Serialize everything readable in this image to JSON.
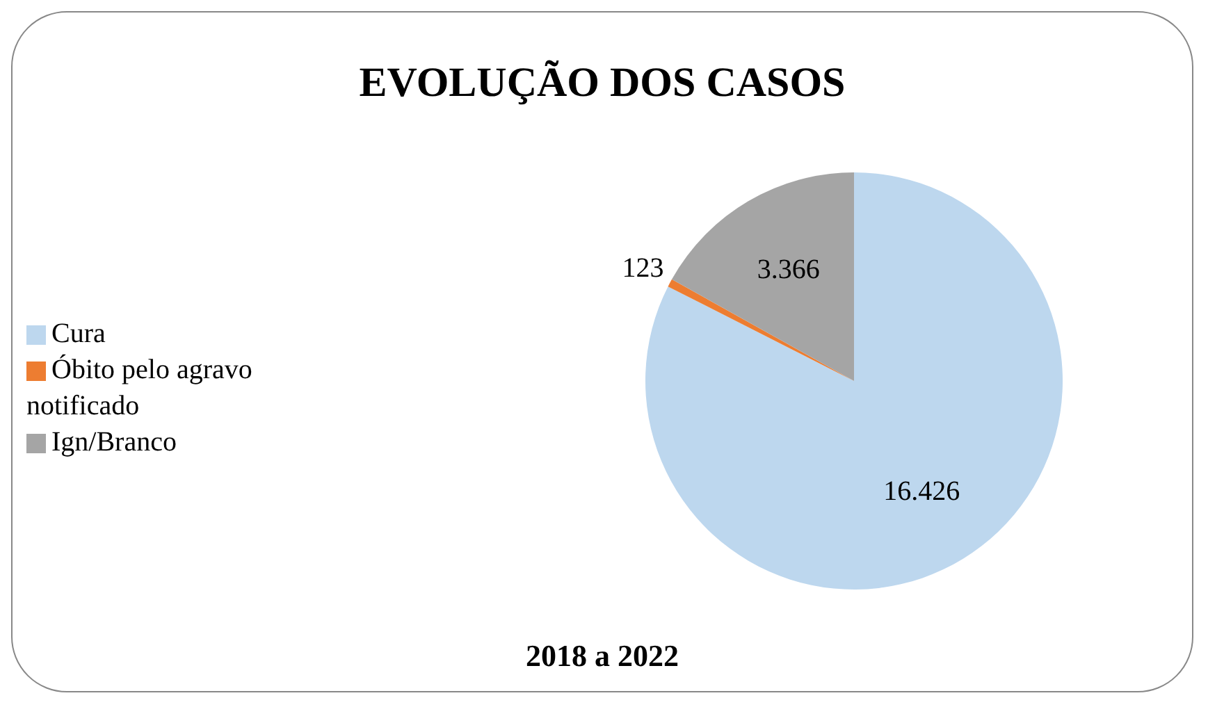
{
  "chart_data": {
    "type": "pie",
    "title": "EVOLUÇÃO DOS CASOS",
    "annotations": [
      "2018 a 2022"
    ],
    "categories": [
      "Cura",
      "Óbito pelo agravo notificado",
      "Ign/Branco"
    ],
    "values": [
      16426,
      123,
      3366
    ],
    "value_labels": [
      "16.426",
      "123",
      "3.366"
    ],
    "colors": [
      "#bdd7ee",
      "#ed7d31",
      "#a5a5a5"
    ],
    "legend": "left"
  }
}
